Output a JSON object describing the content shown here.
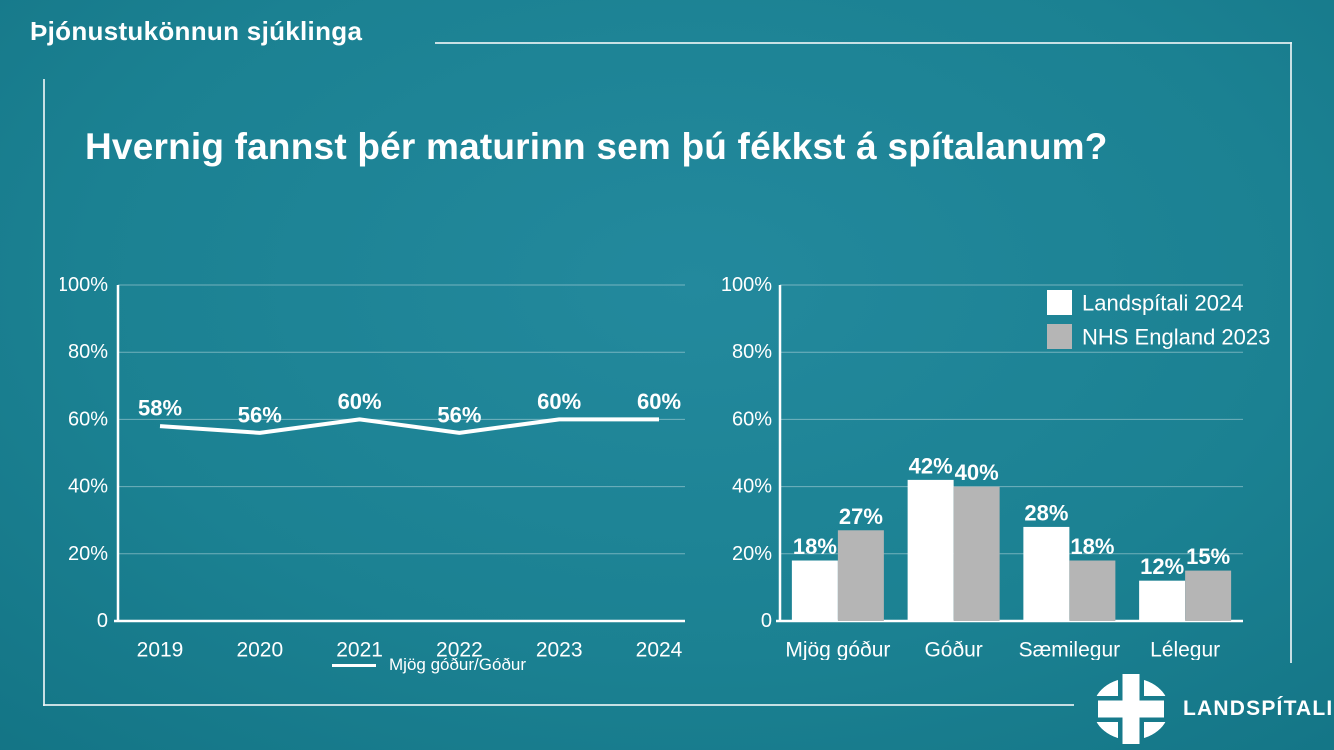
{
  "header": {
    "label": "Þjónustukönnun sjúklinga"
  },
  "title": "Hvernig fannst þér maturinn sem þú fékkst á spítalanum?",
  "colors": {
    "background_center": "#23899d",
    "background_edge": "#0c6575",
    "text": "#ffffff",
    "landspitali_series": "#ffffff",
    "nhs_series": "#b5b5b5",
    "grid_line": "rgba(255,255,255,0.38)",
    "frame_line": "rgba(230,241,243,0.85)"
  },
  "logo": {
    "text": "LANDSPÍTALI",
    "icon": "landspitali-cross-icon"
  },
  "chart_data": [
    {
      "type": "line",
      "categories": [
        "2019",
        "2020",
        "2021",
        "2022",
        "2023",
        "2024"
      ],
      "series": [
        {
          "name": "Mjög góður/Góður",
          "values": [
            58,
            56,
            60,
            56,
            60,
            60
          ],
          "color": "#ffffff"
        }
      ],
      "data_labels": [
        "58%",
        "56%",
        "60%",
        "56%",
        "60%",
        "60%"
      ],
      "label_suffix": "%",
      "ylim": [
        0,
        100
      ],
      "ytick_values": [
        0,
        20,
        40,
        60,
        80,
        100
      ],
      "ytick_labels": [
        "0",
        "20%",
        "40%",
        "60%",
        "80%",
        "100%"
      ],
      "grid": true,
      "legend_position": "bottom",
      "legend_label": "Mjög góður/Góður"
    },
    {
      "type": "bar",
      "categories": [
        "Mjög góður",
        "Góður",
        "Sæmilegur",
        "Lélegur"
      ],
      "series": [
        {
          "name": "Landspítali 2024",
          "values": [
            18,
            42,
            28,
            12
          ],
          "color": "#ffffff"
        },
        {
          "name": "NHS England 2023",
          "values": [
            27,
            40,
            18,
            15
          ],
          "color": "#b5b5b5"
        }
      ],
      "data_labels": [
        [
          "18%",
          "42%",
          "28%",
          "12%"
        ],
        [
          "27%",
          "40%",
          "18%",
          "15%"
        ]
      ],
      "label_suffix": "%",
      "ylim": [
        0,
        100
      ],
      "ytick_values": [
        0,
        20,
        40,
        60,
        80,
        100
      ],
      "ytick_labels": [
        "0",
        "20%",
        "40%",
        "60%",
        "80%",
        "100%"
      ],
      "grid": true,
      "legend_position": "top-right"
    }
  ]
}
